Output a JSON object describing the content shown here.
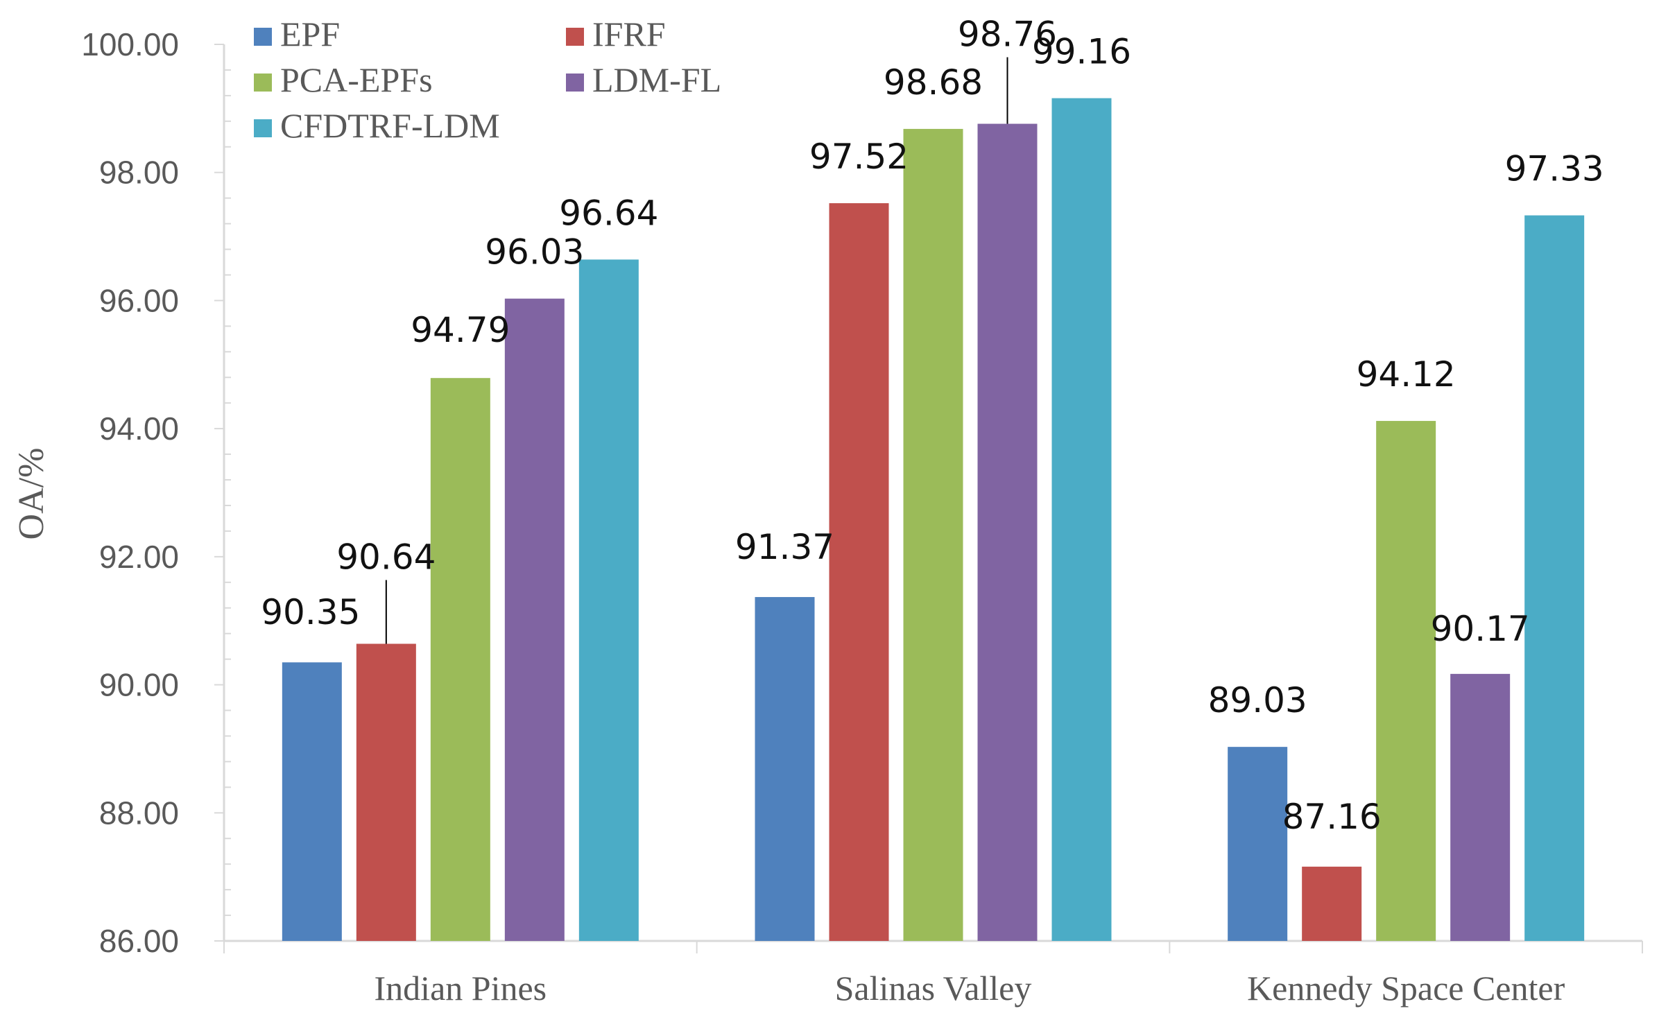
{
  "chart_data": {
    "type": "bar",
    "title": "",
    "xlabel": "",
    "ylabel": "OA/%",
    "ylim": [
      86,
      100
    ],
    "ytick_step": 2,
    "ytick_labels": [
      "86.00",
      "88.00",
      "90.00",
      "92.00",
      "94.00",
      "96.00",
      "98.00",
      "100.00"
    ],
    "grid": false,
    "legend_position": "top-left",
    "categories": [
      "Indian Pines",
      "Salinas Valley",
      "Kennedy Space Center"
    ],
    "series": [
      {
        "name": "EPF",
        "color": "#4f81bd",
        "values": [
          90.35,
          91.37,
          89.03
        ],
        "labels": [
          "90.35",
          "91.37",
          "89.03"
        ]
      },
      {
        "name": "IFRF",
        "color": "#c0504d",
        "values": [
          90.64,
          97.52,
          87.16
        ],
        "labels": [
          "90.64",
          "97.52",
          "87.16"
        ]
      },
      {
        "name": "PCA-EPFs",
        "color": "#9bbb59",
        "values": [
          94.79,
          98.68,
          94.12
        ],
        "labels": [
          "94.79",
          "98.68",
          "94.12"
        ]
      },
      {
        "name": "LDM-FL",
        "color": "#8064a2",
        "values": [
          96.03,
          98.76,
          90.17
        ],
        "labels": [
          "96.03",
          "98.76",
          "90.17"
        ]
      },
      {
        "name": "CFDTRF-LDM",
        "color": "#4bacc6",
        "values": [
          96.64,
          99.16,
          97.33
        ],
        "labels": [
          "96.64",
          "99.16",
          "97.33"
        ]
      }
    ]
  }
}
